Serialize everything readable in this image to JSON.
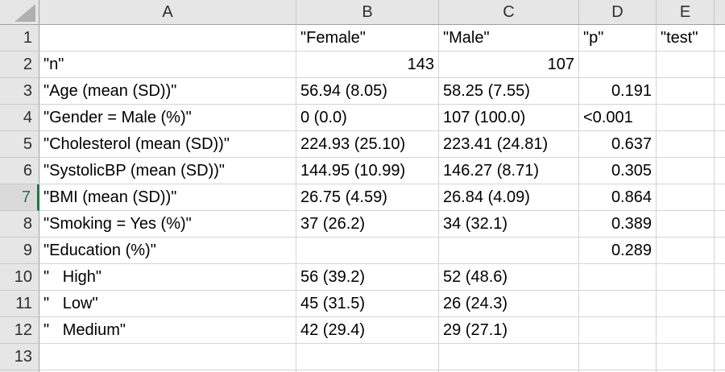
{
  "app": "spreadsheet-grid-view",
  "colors": {
    "accent_green": "#217346",
    "header_bg": "#e6e6e6",
    "active_row_header_bg": "#dadada",
    "gridline": "#d4d4d4",
    "header_border": "#9f9f9f",
    "select_all_triangle": "#b0b0b0"
  },
  "active_row": "7",
  "column_headers": [
    "A",
    "B",
    "C",
    "D",
    "E"
  ],
  "rows": [
    {
      "n": "1",
      "c": [
        "",
        "\"Female\"",
        "\"Male\"",
        "\"p\"",
        "\"test\""
      ]
    },
    {
      "n": "2",
      "c": [
        "\"n\"",
        "143",
        "107",
        "",
        ""
      ]
    },
    {
      "n": "3",
      "c": [
        "\"Age (mean (SD))\"",
        "56.94 (8.05)",
        "58.25 (7.55)",
        "0.191",
        ""
      ]
    },
    {
      "n": "4",
      "c": [
        "\"Gender = Male (%)\"",
        "0 (0.0)",
        "107 (100.0)",
        "<0.001",
        ""
      ]
    },
    {
      "n": "5",
      "c": [
        "\"Cholesterol (mean (SD))\"",
        "224.93 (25.10)",
        "223.41 (24.81)",
        "0.637",
        ""
      ]
    },
    {
      "n": "6",
      "c": [
        "\"SystolicBP (mean (SD))\"",
        "144.95 (10.99)",
        "146.27 (8.71)",
        "0.305",
        ""
      ]
    },
    {
      "n": "7",
      "c": [
        "\"BMI (mean (SD))\"",
        "26.75 (4.59)",
        "26.84 (4.09)",
        "0.864",
        ""
      ]
    },
    {
      "n": "8",
      "c": [
        "\"Smoking = Yes (%)\"",
        "37 (26.2)",
        "34 (32.1)",
        "0.389",
        ""
      ]
    },
    {
      "n": "9",
      "c": [
        "\"Education (%)\"",
        "",
        "",
        "0.289",
        ""
      ]
    },
    {
      "n": "10",
      "c": [
        "\"   High\"",
        "56 (39.2)",
        "52 (48.6)",
        "",
        ""
      ]
    },
    {
      "n": "11",
      "c": [
        "\"   Low\"",
        "45 (31.5)",
        "26 (24.3)",
        "",
        ""
      ]
    },
    {
      "n": "12",
      "c": [
        "\"   Medium\"",
        "42 (29.4)",
        "29 (27.1)",
        "",
        ""
      ]
    },
    {
      "n": "13",
      "c": [
        "",
        "",
        "",
        "",
        ""
      ]
    }
  ]
}
